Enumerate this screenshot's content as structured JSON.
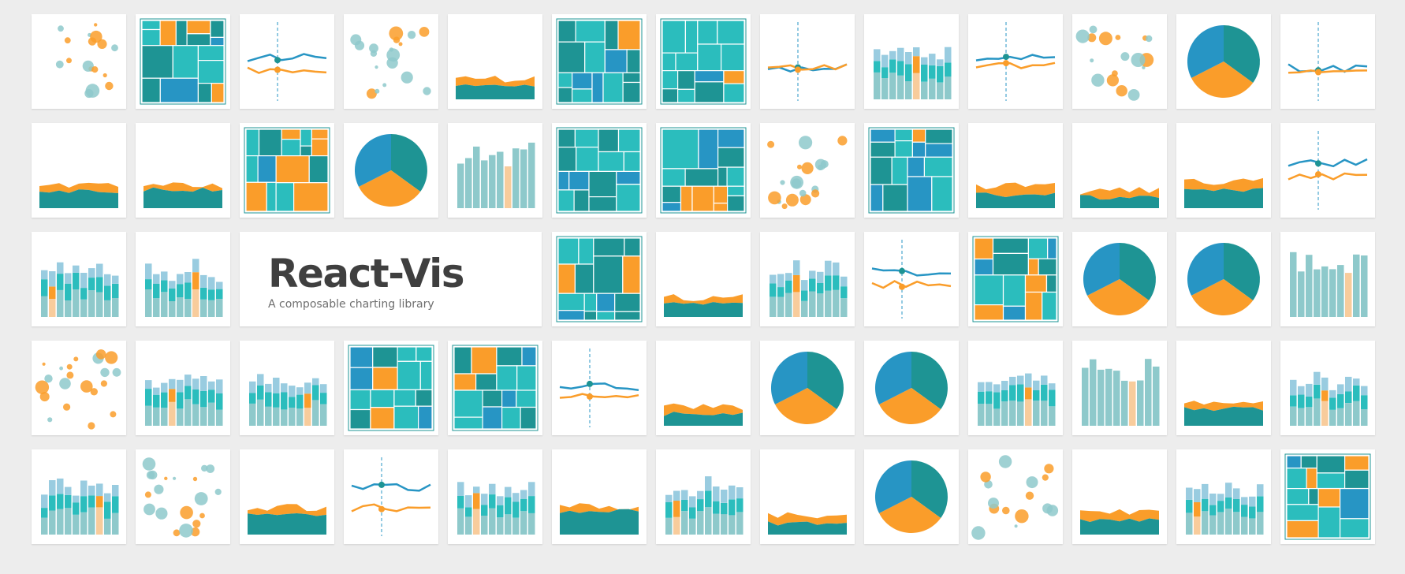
{
  "hero": {
    "title": "React-Vis",
    "subtitle": "A composable charting library"
  },
  "colors": {
    "page_background": "#ededed",
    "tile_background": "#ffffff",
    "teal_dark": "#1e9494",
    "teal": "#2bbdbd",
    "blue": "#2795c4",
    "orange": "#fa9d2a",
    "light_teal": "#8ec9cb",
    "light_blue": "#99cce0",
    "peach": "#f8cc9c",
    "title_text": "#3f3f3f",
    "subtitle_text": "#6e6e6e"
  },
  "tiles": [
    [
      "bubble",
      "treemap",
      "crosshair-line",
      "bubble",
      "area",
      "treemap",
      "treemap",
      "crosshair-line",
      "stacked-bar",
      "crosshair-line",
      "bubble",
      "pie",
      "crosshair-line"
    ],
    [
      "area",
      "area",
      "treemap",
      "pie",
      "bar",
      "treemap",
      "treemap",
      "bubble",
      "treemap",
      "area",
      "area",
      "area",
      "crosshair-line"
    ],
    [
      "stacked-bar",
      "stacked-bar",
      "hero",
      "hero",
      "hero",
      "treemap",
      "area",
      "stacked-bar",
      "crosshair-line",
      "treemap",
      "pie",
      "pie",
      "bar"
    ],
    [
      "bubble",
      "stacked-bar",
      "stacked-bar",
      "treemap",
      "treemap",
      "crosshair-line",
      "area",
      "pie",
      "pie",
      "stacked-bar",
      "bar",
      "area",
      "stacked-bar"
    ],
    [
      "stacked-bar",
      "bubble",
      "area",
      "crosshair-line",
      "stacked-bar",
      "area",
      "stacked-bar",
      "area",
      "pie",
      "bubble",
      "area",
      "stacked-bar",
      "treemap"
    ]
  ]
}
